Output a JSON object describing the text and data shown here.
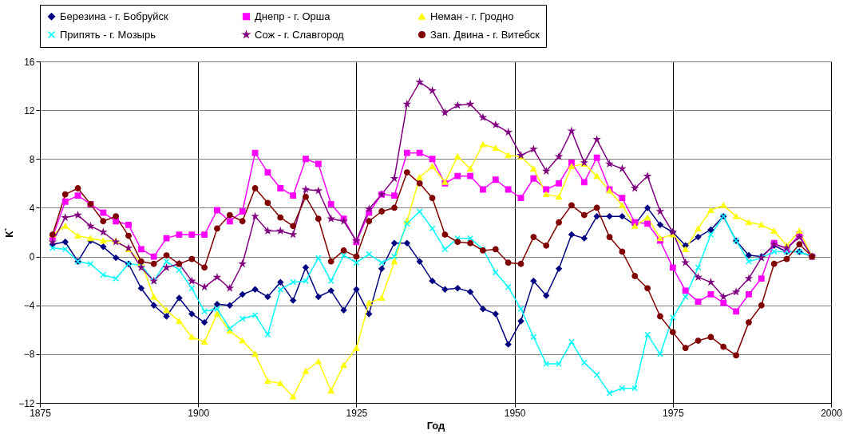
{
  "chart_data": {
    "type": "line",
    "xlabel": "Год",
    "ylabel": "К`",
    "x": [
      1877,
      1879,
      1881,
      1883,
      1885,
      1887,
      1889,
      1891,
      1893,
      1895,
      1897,
      1899,
      1901,
      1903,
      1905,
      1907,
      1909,
      1911,
      1913,
      1915,
      1917,
      1919,
      1921,
      1923,
      1925,
      1927,
      1929,
      1931,
      1933,
      1935,
      1937,
      1939,
      1941,
      1943,
      1945,
      1947,
      1949,
      1951,
      1953,
      1955,
      1957,
      1959,
      1961,
      1963,
      1965,
      1967,
      1969,
      1971,
      1973,
      1975,
      1977,
      1979,
      1981,
      1983,
      1985,
      1987,
      1989,
      1991,
      1993,
      1995,
      1997
    ],
    "series": [
      {
        "name": "Березина - г. Бобруйск",
        "color": "#000080",
        "marker": "diamond",
        "values": [
          1.0,
          1.2,
          -0.4,
          1.3,
          0.8,
          -0.1,
          -0.6,
          -2.6,
          -4.0,
          -4.9,
          -3.4,
          -4.7,
          -5.4,
          -3.9,
          -4.0,
          -3.1,
          -2.7,
          -3.3,
          -2.1,
          -3.6,
          -0.9,
          -3.3,
          -2.8,
          -4.4,
          -2.7,
          -4.7,
          -1.0,
          1.1,
          1.1,
          -0.4,
          -2.0,
          -2.7,
          -2.6,
          -2.9,
          -4.3,
          -4.7,
          -7.2,
          -5.3,
          -2.0,
          -3.2,
          -1.0,
          1.8,
          1.5,
          3.3,
          3.3,
          3.3,
          2.6,
          4.0,
          2.6,
          2.0,
          0.9,
          1.6,
          2.2,
          3.3,
          1.3,
          0.1,
          0,
          0.9,
          0.4,
          0.4,
          0
        ]
      },
      {
        "name": "Днепр - г. Орша",
        "color": "#ff00ff",
        "marker": "square",
        "values": [
          1.6,
          4.5,
          5.0,
          4.3,
          3.6,
          2.9,
          2.6,
          0.6,
          0,
          1.5,
          1.8,
          1.8,
          1.8,
          3.8,
          2.9,
          3.7,
          8.5,
          6.9,
          5.6,
          5.0,
          8.0,
          7.6,
          4.3,
          3.1,
          1.2,
          3.6,
          5.1,
          5.0,
          8.5,
          8.5,
          8.0,
          6.0,
          6.6,
          6.6,
          5.5,
          6.3,
          5.5,
          4.8,
          6.4,
          5.5,
          6.0,
          7.7,
          6.1,
          8.1,
          5.5,
          4.8,
          2.8,
          2.7,
          1.3,
          -0.9,
          -2.8,
          -3.7,
          -3.1,
          -3.8,
          -4.5,
          -3.1,
          -1.8,
          1.1,
          0.6,
          1.8,
          0
        ]
      },
      {
        "name": "Неман - г. Гродно",
        "color": "#ffff00",
        "marker": "triangle",
        "values": [
          1.8,
          2.5,
          1.7,
          1.5,
          1.3,
          1.3,
          0.6,
          -0.5,
          -3.3,
          -4.4,
          -5.3,
          -6.6,
          -7.0,
          -4.7,
          -6.1,
          -6.9,
          -8.0,
          -10.2,
          -10.4,
          -11.5,
          -9.4,
          -8.6,
          -11.0,
          -8.9,
          -7.5,
          -3.8,
          -3.4,
          -0.4,
          2.9,
          6.5,
          7.4,
          6.1,
          8.2,
          7.2,
          9.2,
          8.9,
          8.3,
          8.2,
          7.2,
          5.1,
          4.9,
          7.4,
          7.6,
          6.6,
          5.4,
          4.2,
          2.5,
          3.2,
          1.5,
          1.8,
          0.6,
          2.3,
          3.8,
          4.2,
          3.3,
          2.8,
          2.6,
          2.1,
          0.9,
          2.1,
          0
        ]
      },
      {
        "name": "Припять - г. Мозырь",
        "color": "#00ffff",
        "marker": "cross",
        "values": [
          0.7,
          0.6,
          -0.4,
          -0.6,
          -1.5,
          -1.8,
          -0.6,
          -0.7,
          -2.0,
          -0.4,
          -1.1,
          -2.6,
          -4.5,
          -4.3,
          -5.9,
          -5.1,
          -4.8,
          -6.4,
          -2.7,
          -2.1,
          -2.0,
          -0.1,
          -2.0,
          0.1,
          -0.5,
          0.2,
          -0.5,
          0,
          2.7,
          3.7,
          2.3,
          0.6,
          1.5,
          1.5,
          0.6,
          -1.3,
          -2.5,
          -4.3,
          -6.6,
          -8.8,
          -8.8,
          -7.0,
          -8.7,
          -9.7,
          -11.2,
          -10.8,
          -10.8,
          -6.4,
          -8.0,
          -5.0,
          -3.3,
          -0.9,
          1.8,
          3.3,
          1.3,
          -0.4,
          -0.1,
          0.4,
          0.4,
          0.4,
          0
        ]
      },
      {
        "name": "Сож - г. Славгород",
        "color": "#800080",
        "marker": "star",
        "values": [
          1.2,
          3.2,
          3.4,
          2.5,
          2.0,
          1.2,
          0.7,
          -0.9,
          -2.0,
          -0.9,
          -0.6,
          -2.0,
          -2.5,
          -1.7,
          -2.6,
          -0.6,
          3.3,
          2.1,
          2.1,
          1.8,
          5.5,
          5.4,
          3.1,
          2.9,
          1.3,
          3.9,
          5.1,
          6.4,
          12.5,
          14.3,
          13.6,
          11.8,
          12.4,
          12.5,
          11.4,
          10.8,
          10.2,
          8.3,
          8.8,
          7.0,
          8.2,
          10.3,
          7.7,
          9.6,
          7.6,
          7.2,
          5.6,
          6.6,
          3.7,
          2.0,
          -0.5,
          -1.7,
          -2.1,
          -3.3,
          -2.9,
          -1.8,
          -0.1,
          1.0,
          0.7,
          1.6,
          0
        ]
      },
      {
        "name": "Зап. Двина - г. Витебск",
        "color": "#800000",
        "marker": "circle",
        "values": [
          1.8,
          5.1,
          5.6,
          4.3,
          2.9,
          3.3,
          1.7,
          -0.4,
          -0.6,
          0.1,
          -0.6,
          -0.2,
          -0.9,
          2.3,
          3.4,
          2.9,
          5.6,
          4.4,
          3.2,
          2.5,
          4.9,
          3.1,
          -0.4,
          0.5,
          0,
          2.9,
          3.7,
          4.0,
          6.9,
          6.0,
          4.8,
          1.8,
          1.2,
          1.1,
          0.5,
          0.6,
          -0.5,
          -0.6,
          1.6,
          0.9,
          2.8,
          4.2,
          3.4,
          4.0,
          1.6,
          0.4,
          -1.6,
          -2.6,
          -4.9,
          -6.2,
          -7.5,
          -6.9,
          -6.6,
          -7.4,
          -8.1,
          -5.4,
          -4.0,
          -0.6,
          -0.2,
          1.0,
          0
        ]
      }
    ],
    "xlim": [
      1875,
      2000
    ],
    "xticks": [
      1875,
      1900,
      1925,
      1950,
      1975,
      2000
    ],
    "ylim": [
      -12,
      16
    ],
    "yticks": [
      -12,
      -8,
      -4,
      0,
      4,
      8,
      12,
      16
    ],
    "grid": true,
    "legend": "top",
    "line_style": "solid"
  }
}
